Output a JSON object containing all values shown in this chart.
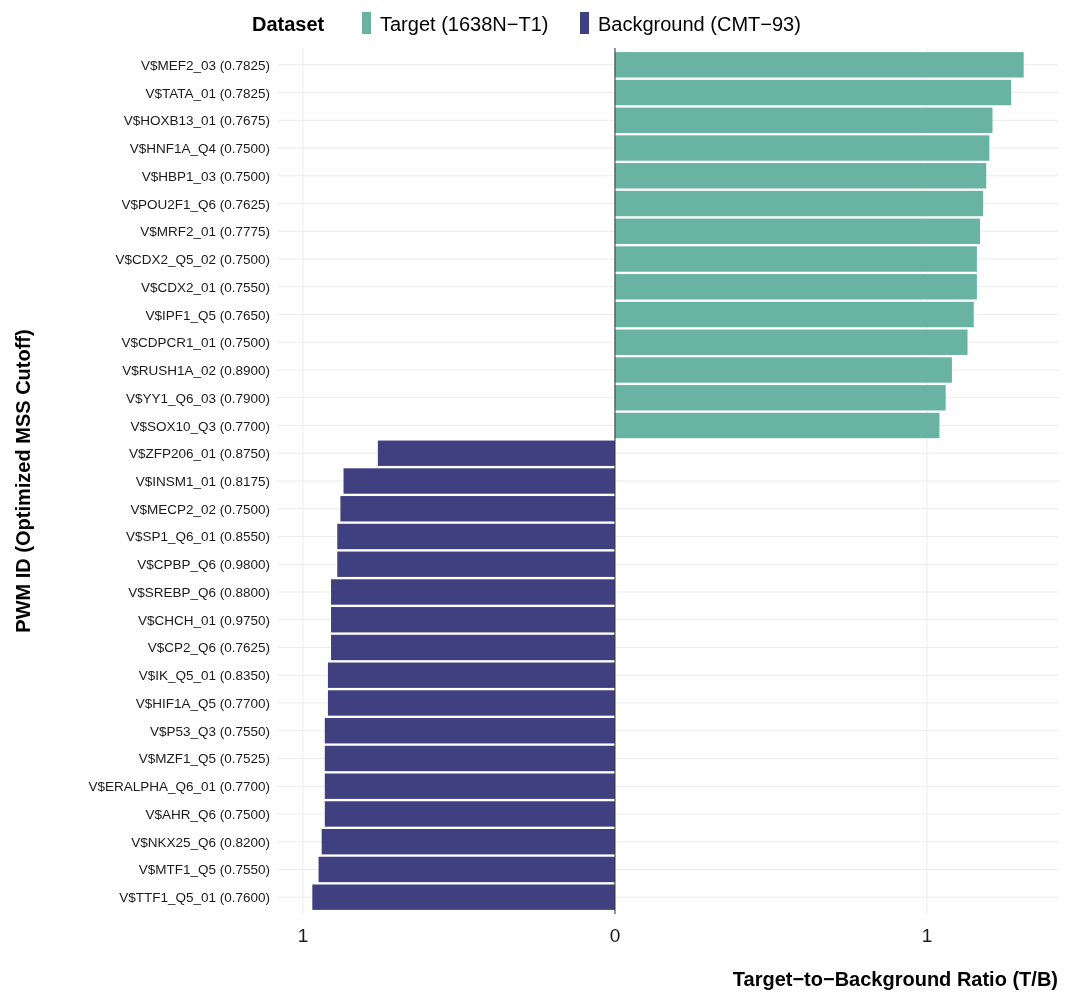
{
  "chart_data": {
    "type": "bar",
    "orientation": "horizontal",
    "xlabel": "Target−to−Background Ratio (T/B)",
    "ylabel": "PWM ID (Optimized MSS Cutoff)",
    "legend_title": "Dataset",
    "categories": [
      "V$MEF2_03 (0.7825)",
      "V$TATA_01 (0.7825)",
      "V$HOXB13_01 (0.7675)",
      "V$HNF1A_Q4 (0.7500)",
      "V$HBP1_03 (0.7500)",
      "V$POU2F1_Q6 (0.7625)",
      "V$MRF2_01 (0.7775)",
      "V$CDX2_Q5_02 (0.7500)",
      "V$CDX2_01 (0.7550)",
      "V$IPF1_Q5 (0.7650)",
      "V$CDPCR1_01 (0.7500)",
      "V$RUSH1A_02 (0.8900)",
      "V$YY1_Q6_03 (0.7900)",
      "V$SOX10_Q3 (0.7700)",
      "V$ZFP206_01 (0.8750)",
      "V$INSM1_01 (0.8175)",
      "V$MECP2_02 (0.7500)",
      "V$SP1_Q6_01 (0.8550)",
      "V$CPBP_Q6 (0.9800)",
      "V$SREBP_Q6 (0.8800)",
      "V$CHCH_01 (0.9750)",
      "V$CP2_Q6 (0.7625)",
      "V$IK_Q5_01 (0.8350)",
      "V$HIF1A_Q5 (0.7700)",
      "V$P53_Q3 (0.7550)",
      "V$MZF1_Q5 (0.7525)",
      "V$ERALPHA_Q6_01 (0.7700)",
      "V$AHR_Q6 (0.7500)",
      "V$NKX25_Q6 (0.8200)",
      "V$MTF1_Q5 (0.7550)",
      "V$TTF1_Q5_01 (0.7600)"
    ],
    "series": [
      {
        "name": "Target (1638N−T1)",
        "color": "#69b3a2",
        "values": [
          1.31,
          1.27,
          1.21,
          1.2,
          1.19,
          1.18,
          1.17,
          1.16,
          1.16,
          1.15,
          1.13,
          1.08,
          1.06,
          1.04,
          null,
          null,
          null,
          null,
          null,
          null,
          null,
          null,
          null,
          null,
          null,
          null,
          null,
          null,
          null,
          null,
          null
        ]
      },
      {
        "name": "Background (CMT−93)",
        "color": "#404080",
        "values": [
          null,
          null,
          null,
          null,
          null,
          null,
          null,
          null,
          null,
          null,
          null,
          null,
          null,
          null,
          -0.76,
          -0.87,
          -0.88,
          -0.89,
          -0.89,
          -0.91,
          -0.91,
          -0.91,
          -0.92,
          -0.92,
          -0.93,
          -0.93,
          -0.93,
          -0.93,
          -0.94,
          -0.95,
          -0.97
        ]
      }
    ],
    "xlim": [
      -1.08,
      1.42
    ],
    "xticks": [
      {
        "value": -1,
        "label": "1"
      },
      0,
      1
    ],
    "ref_lines": [
      {
        "axis": "x",
        "value": 0,
        "color": "#333333"
      }
    ],
    "grid": true,
    "legend": "top"
  }
}
